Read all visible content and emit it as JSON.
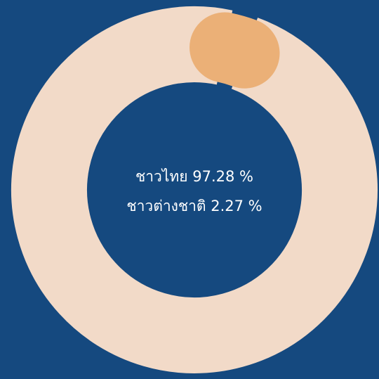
{
  "chart_data": {
    "type": "donut",
    "categories": [
      "ชาวไทย",
      "ชาวต่างชาติ"
    ],
    "values": [
      97.28,
      2.27
    ],
    "value_labels": [
      "97.28 %",
      "2.27 %"
    ],
    "colors": [
      "#f2dac8",
      "#ebb077"
    ]
  }
}
